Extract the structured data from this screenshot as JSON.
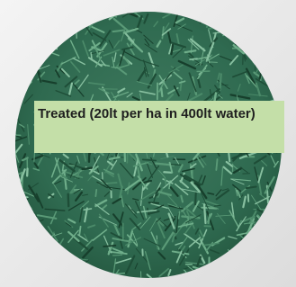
{
  "label": {
    "text": "Treated (20lt per ha in 400lt water)"
  }
}
